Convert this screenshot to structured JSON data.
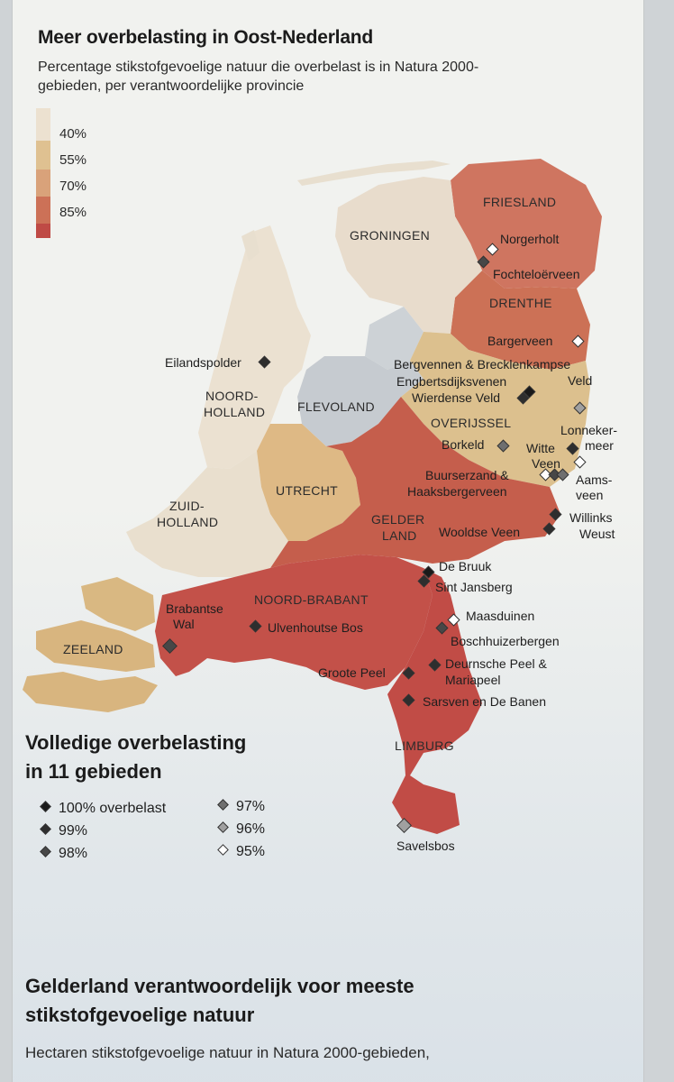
{
  "header": {
    "title": "Meer overbelasting in Oost-Nederland",
    "subtitle": "Percentage stikstofgevoelige natuur die overbelast is in Natura 2000-gebieden, per verantwoordelijke provincie"
  },
  "legend": {
    "labels": [
      "40%",
      "55%",
      "70%",
      "85%"
    ],
    "colors": [
      "#ece1d0",
      "#dfc191",
      "#d58a61",
      "#bf4a45"
    ]
  },
  "provinces": {
    "friesland": "FRIESLAND",
    "groningen": "GRONINGEN",
    "drenthe": "DRENTHE",
    "noord_holland_1": "NOORD-",
    "noord_holland_2": "HOLLAND",
    "flevoland": "FLEVOLAND",
    "overijssel": "OVERIJSSEL",
    "utrecht": "UTRECHT",
    "zuid_holland_1": "ZUID-",
    "zuid_holland_2": "HOLLAND",
    "gelderland_1": "GELDER",
    "gelderland_2": "LAND",
    "noord_brabant": "NOORD-BRABANT",
    "zeeland": "ZEELAND",
    "limburg": "LIMBURG"
  },
  "sites": {
    "norgerholt": "Norgerholt",
    "fochteloerveen": "Fochteloërveen",
    "bargerveen": "Bargerveen",
    "eilandspolder": "Eilandspolder",
    "bergvennen": "Bergvennen & Brecklenkampse",
    "bergvennen_2": "Veld",
    "engbertsdijksvenen": "Engbertsdijksvenen",
    "wierdense_veld": "Wierdense Veld",
    "lonnekermeer_1": "Lonneker-",
    "lonnekermeer_2": "meer",
    "borkeld": "Borkeld",
    "witte_veen_1": "Witte",
    "witte_veen_2": "Veen",
    "aamsveen_1": "Aams-",
    "aamsveen_2": "veen",
    "buurserzand_1": "Buurserzand &",
    "buurserzand_2": "Haaksbergerveen",
    "willinks_weust_1": "Willinks",
    "willinks_weust_2": "Weust",
    "wooldse_veen": "Wooldse Veen",
    "de_bruuk": "De Bruuk",
    "sint_jansberg": "Sint Jansberg",
    "maasduinen": "Maasduinen",
    "brabantse_wal_1": "Brabantse",
    "brabantse_wal_2": "Wal",
    "ulvenhoutse_bos": "Ulvenhoutse Bos",
    "boschhuizerbergen": "Boschhuizerbergen",
    "groote_peel": "Groote Peel",
    "deurnsche_peel_1": "Deurnsche Peel &",
    "deurnsche_peel_2": "Mariapeel",
    "sarsven": "Sarsven en De Banen",
    "savelsbos": "Savelsbos"
  },
  "overload_key": {
    "title_line1": "Volledige overbelasting",
    "title_line2": "in 11 gebieden",
    "items": [
      {
        "label": "100% overbelast",
        "color": "#1a1a1a"
      },
      {
        "label": "99%",
        "color": "#2e2e2e"
      },
      {
        "label": "98%",
        "color": "#474747"
      },
      {
        "label": "97%",
        "color": "#6f6f6f"
      },
      {
        "label": "96%",
        "color": "#a0a0a0"
      },
      {
        "label": "95%",
        "color": "#ffffff"
      }
    ]
  },
  "next_section": {
    "title_line1": "Gelderland verantwoordelijk voor meeste",
    "title_line2": "stikstofgevoelige natuur",
    "subtitle": "Hectaren stikstofgevoelige natuur in Natura 2000-gebieden,"
  }
}
